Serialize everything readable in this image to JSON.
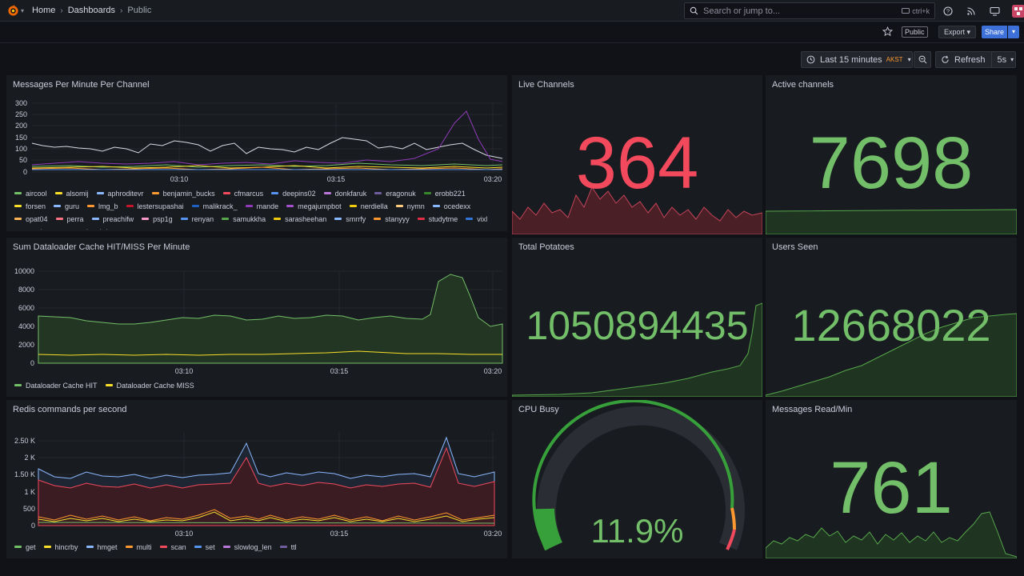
{
  "breadcrumb": {
    "home": "Home",
    "dashboards": "Dashboards",
    "current": "Public"
  },
  "search": {
    "placeholder": "Search or jump to...",
    "shortcut": "ctrl+k"
  },
  "toolbar": {
    "public_label": "Public",
    "export_label": "Export",
    "share_label": "Share"
  },
  "timepicker": {
    "range_label": "Last 15 minutes",
    "timezone": "AKST",
    "refresh_label": "Refresh",
    "interval": "5s"
  },
  "colors": {
    "accent_blue": "#3d71d9",
    "stat_green": "#73bf69",
    "stat_red": "#f2495c",
    "tz_orange": "#ff9830"
  },
  "panels": {
    "messages_per_minute": {
      "title": "Messages Per Minute Per Channel",
      "legend": [
        {
          "name": "aircool",
          "color": "#73bf69"
        },
        {
          "name": "alsomij",
          "color": "#fade2a"
        },
        {
          "name": "aphroditevr",
          "color": "#8ab8ff"
        },
        {
          "name": "benjamin_bucks",
          "color": "#ff9830"
        },
        {
          "name": "cfmarcus",
          "color": "#f2495c"
        },
        {
          "name": "deepins02",
          "color": "#5794f2"
        },
        {
          "name": "donkfaruk",
          "color": "#b877d9"
        },
        {
          "name": "eragonuk",
          "color": "#705da0"
        },
        {
          "name": "erobb221",
          "color": "#37872d"
        },
        {
          "name": "forsen",
          "color": "#fade2a"
        },
        {
          "name": "guru",
          "color": "#8ab8ff"
        },
        {
          "name": "lmg_b",
          "color": "#ff9830"
        },
        {
          "name": "lestersupashai",
          "color": "#c4162a"
        },
        {
          "name": "malikrack_",
          "color": "#1f60c4"
        },
        {
          "name": "mande",
          "color": "#8f3bb8"
        },
        {
          "name": "megajumpbot",
          "color": "#a352cc"
        },
        {
          "name": "nerdiella",
          "color": "#f2cc0c"
        },
        {
          "name": "nymn",
          "color": "#ffcb7d"
        },
        {
          "name": "ocedexx",
          "color": "#8ab8ff"
        },
        {
          "name": "opat04",
          "color": "#ffb357"
        },
        {
          "name": "perra",
          "color": "#ff7383"
        },
        {
          "name": "preachifw",
          "color": "#8ab8ff"
        },
        {
          "name": "psp1g",
          "color": "#ff99cc"
        },
        {
          "name": "renyan",
          "color": "#5794f2"
        },
        {
          "name": "samukkha",
          "color": "#56a64b"
        },
        {
          "name": "sarasheehan",
          "color": "#f2cc0c"
        },
        {
          "name": "smrrfy",
          "color": "#8ab8ff"
        },
        {
          "name": "stanyyy",
          "color": "#ff9830"
        },
        {
          "name": "studytme",
          "color": "#e02f44"
        },
        {
          "name": "vixl",
          "color": "#3274d9"
        },
        {
          "name": "vsevkusno",
          "color": "#a352cc"
        },
        {
          "name": "vulpeshd",
          "color": "#8f8bff"
        }
      ]
    },
    "live_channels": {
      "title": "Live Channels",
      "value": "364"
    },
    "active_channels": {
      "title": "Active channels",
      "value": "7698"
    },
    "dataloader": {
      "title": "Sum Dataloader Cache HIT/MISS Per Minute",
      "legend": [
        {
          "name": "Dataloader Cache HIT",
          "color": "#73bf69"
        },
        {
          "name": "Dataloader Cache MISS",
          "color": "#fade2a"
        }
      ]
    },
    "total_potatoes": {
      "title": "Total Potatoes",
      "value": "1050894435"
    },
    "users_seen": {
      "title": "Users Seen",
      "value": "12668022"
    },
    "redis": {
      "title": "Redis commands per second",
      "legend": [
        {
          "name": "get",
          "color": "#73bf69"
        },
        {
          "name": "hincrby",
          "color": "#fade2a"
        },
        {
          "name": "hmget",
          "color": "#8ab8ff"
        },
        {
          "name": "multi",
          "color": "#ff9830"
        },
        {
          "name": "scan",
          "color": "#f2495c"
        },
        {
          "name": "set",
          "color": "#5794f2"
        },
        {
          "name": "slowlog_len",
          "color": "#b877d9"
        },
        {
          "name": "ttl",
          "color": "#705da0"
        }
      ]
    },
    "cpu_busy": {
      "title": "CPU Busy",
      "value": "11.9%",
      "percent": 11.9
    },
    "messages_read": {
      "title": "Messages Read/Min",
      "value": "761"
    }
  },
  "chart_data": [
    {
      "type": "line",
      "title": "Messages Per Minute Per Channel",
      "x_ticks": [
        "03:10",
        "03:15",
        "03:20"
      ],
      "y_ticks": [
        "300",
        "250",
        "200",
        "150",
        "100",
        "50",
        "0"
      ],
      "ylim": [
        0,
        300
      ]
    },
    {
      "type": "area",
      "title": "Sum Dataloader Cache HIT/MISS Per Minute",
      "x_ticks": [
        "03:10",
        "03:15",
        "03:20"
      ],
      "y_ticks": [
        "10000",
        "8000",
        "6000",
        "4000",
        "2000",
        "0"
      ],
      "ylim": [
        0,
        10000
      ]
    },
    {
      "type": "area",
      "title": "Redis commands per second",
      "x_ticks": [
        "03:10",
        "03:15",
        "03:20"
      ],
      "y_ticks": [
        "2.50 K",
        "2 K",
        "1.50 K",
        "1 K",
        "500",
        "0"
      ],
      "ylim": [
        0,
        2750
      ]
    }
  ]
}
